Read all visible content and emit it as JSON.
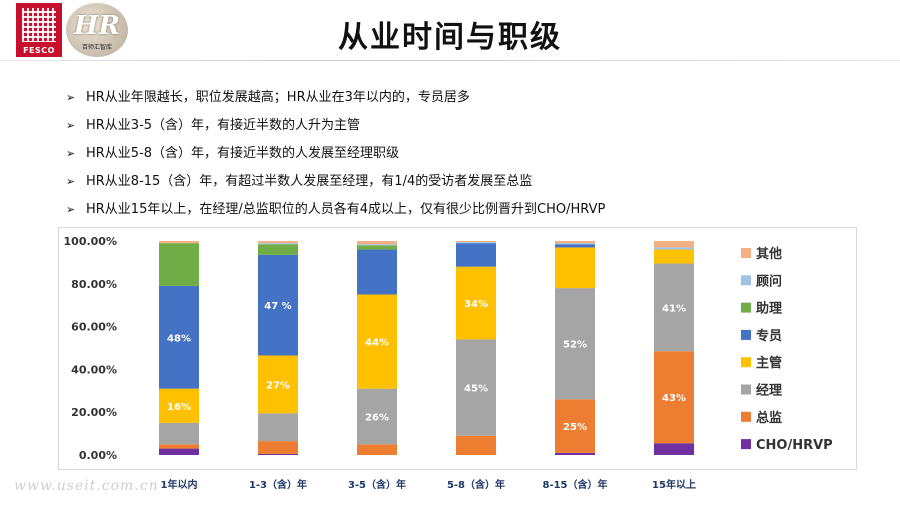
{
  "header": {
    "logo_text": "FESCO",
    "hr_logo_text": "HR",
    "hr_logo_sub": "百师汇智库",
    "title": "从业时间与职级"
  },
  "bullets": [
    "HR从业年限越长，职位发展越高；HR从业在3年以内的，专员居多",
    "HR从业3-5（含）年，有接近半数的人升为主管",
    "HR从业5-8（含）年，有接近半数的人发展至经理职级",
    "HR从业8-15（含）年，有超过半数人发展至经理，有1/4的受访者发展至总监",
    "HR从业15年以上，在经理/总监职位的人员各有4成以上，仅有很少比例晋升到CHO/HRVP"
  ],
  "bullet_marker": "➢",
  "watermark": "www.useit.com.cn",
  "chart_data": {
    "type": "bar",
    "stacked": true,
    "categories": [
      "1年以内",
      "1-3（含）年",
      "3-5（含）年",
      "5-8（含）年",
      "8-15（含）年",
      "15年以上"
    ],
    "ylim": [
      0,
      100
    ],
    "yticks": [
      "0.00%",
      "20.00%",
      "40.00%",
      "60.00%",
      "80.00%",
      "100.00%"
    ],
    "legend_position": "right",
    "series": [
      {
        "name": "CHO/HRVP",
        "color": "#7030a0",
        "values": [
          3,
          0.5,
          0,
          0,
          1,
          5.5
        ]
      },
      {
        "name": "总监",
        "color": "#ed7d31",
        "values": [
          2,
          6,
          5,
          9,
          25,
          43
        ]
      },
      {
        "name": "经理",
        "color": "#a5a5a5",
        "values": [
          10,
          13,
          26,
          45,
          52,
          41
        ]
      },
      {
        "name": "主管",
        "color": "#ffc000",
        "values": [
          16,
          27,
          44,
          34,
          19,
          6.5
        ]
      },
      {
        "name": "专员",
        "color": "#4472c4",
        "values": [
          48,
          47,
          21,
          11,
          1.5,
          0
        ]
      },
      {
        "name": "助理",
        "color": "#70ad47",
        "values": [
          20,
          5,
          2,
          0,
          0,
          0
        ]
      },
      {
        "name": "顾问",
        "color": "#9dc3e6",
        "values": [
          0,
          0.5,
          0.5,
          0.5,
          0.5,
          1
        ]
      },
      {
        "name": "其他",
        "color": "#f4b183",
        "values": [
          1,
          1,
          1.5,
          0.5,
          1,
          3
        ]
      }
    ],
    "data_labels": [
      {
        "series": "主管",
        "category": 0,
        "text": "16%"
      },
      {
        "series": "专员",
        "category": 0,
        "text": "48%"
      },
      {
        "series": "主管",
        "category": 1,
        "text": "27%"
      },
      {
        "series": "专员",
        "category": 1,
        "text": "47 %"
      },
      {
        "series": "经理",
        "category": 2,
        "text": "26%"
      },
      {
        "series": "主管",
        "category": 2,
        "text": "44%"
      },
      {
        "series": "经理",
        "category": 3,
        "text": "45%"
      },
      {
        "series": "主管",
        "category": 3,
        "text": "34%"
      },
      {
        "series": "总监",
        "category": 4,
        "text": "25%"
      },
      {
        "series": "经理",
        "category": 4,
        "text": "52%"
      },
      {
        "series": "总监",
        "category": 5,
        "text": "43%"
      },
      {
        "series": "经理",
        "category": 5,
        "text": "41%"
      }
    ]
  }
}
